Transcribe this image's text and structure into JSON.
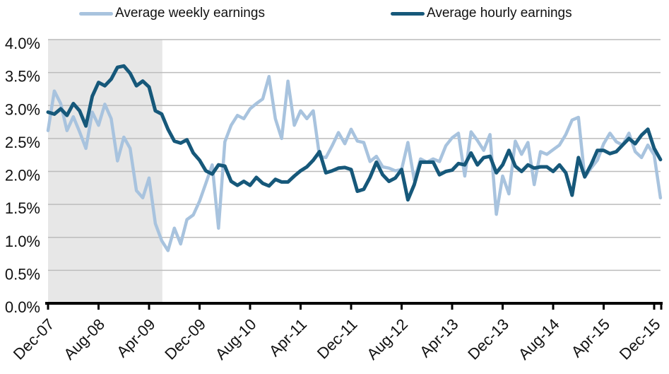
{
  "legend": {
    "weekly_label": "Average weekly earnings",
    "hourly_label": "Average hourly earnings"
  },
  "colors": {
    "weekly": "#a8c3de",
    "hourly": "#16587a",
    "band": "#e7e7e7",
    "gridline": "#bcbcbc",
    "axis": "#000000",
    "text": "#111111"
  },
  "chart_data": {
    "type": "line",
    "x_unit": "month",
    "x_tick_labels": [
      "Dec-07",
      "Aug-08",
      "Apr-09",
      "Dec-09",
      "Aug-10",
      "Apr-11",
      "Dec-11",
      "Aug-12",
      "Apr-13",
      "Dec-13",
      "Aug-14",
      "Apr-15",
      "Dec-15"
    ],
    "x_tick_indices": [
      0,
      8,
      16,
      24,
      32,
      40,
      48,
      56,
      64,
      72,
      80,
      88,
      96
    ],
    "y_tick_labels": [
      "0.0%",
      "0.5%",
      "1.0%",
      "1.5%",
      "2.0%",
      "2.5%",
      "3.0%",
      "3.5%",
      "4.0%"
    ],
    "y_tick_values": [
      0,
      0.5,
      1.0,
      1.5,
      2.0,
      2.5,
      3.0,
      3.5,
      4.0
    ],
    "ylim": [
      0,
      4.0
    ],
    "grid": "horizontal",
    "legend_position": "top",
    "shaded_region": {
      "start_index": 0,
      "end_index": 18.1
    },
    "series": [
      {
        "name": "Average weekly earnings",
        "color": "#a8c3de",
        "values": [
          2.62,
          3.22,
          3.03,
          2.62,
          2.83,
          2.6,
          2.35,
          2.9,
          2.7,
          3.02,
          2.8,
          2.16,
          2.52,
          2.35,
          1.71,
          1.6,
          1.9,
          1.21,
          0.95,
          0.8,
          1.14,
          0.9,
          1.27,
          1.34,
          1.55,
          1.82,
          2.1,
          1.14,
          2.45,
          2.7,
          2.85,
          2.8,
          2.95,
          3.03,
          3.1,
          3.44,
          2.8,
          2.5,
          3.37,
          2.7,
          2.92,
          2.8,
          2.92,
          2.23,
          2.21,
          2.39,
          2.59,
          2.42,
          2.64,
          2.46,
          2.44,
          2.15,
          2.23,
          2.07,
          2.05,
          2.01,
          2.03,
          2.44,
          1.87,
          2.19,
          2.14,
          2.19,
          2.15,
          2.39,
          2.51,
          2.58,
          1.93,
          2.6,
          2.47,
          2.32,
          2.56,
          1.35,
          1.93,
          1.66,
          2.46,
          2.26,
          2.44,
          1.8,
          2.3,
          2.26,
          2.33,
          2.4,
          2.56,
          2.78,
          2.82,
          1.91,
          2.05,
          2.17,
          2.42,
          2.58,
          2.45,
          2.4,
          2.58,
          2.3,
          2.21,
          2.4,
          2.25,
          1.6
        ]
      },
      {
        "name": "Average hourly earnings",
        "color": "#16587a",
        "values": [
          2.9,
          2.87,
          2.95,
          2.85,
          3.03,
          2.92,
          2.69,
          3.14,
          3.35,
          3.3,
          3.4,
          3.58,
          3.6,
          3.49,
          3.3,
          3.37,
          3.28,
          2.92,
          2.87,
          2.64,
          2.46,
          2.43,
          2.48,
          2.28,
          2.17,
          2.01,
          1.96,
          2.1,
          2.08,
          1.85,
          1.79,
          1.85,
          1.79,
          1.91,
          1.82,
          1.78,
          1.88,
          1.84,
          1.84,
          1.93,
          2.01,
          2.07,
          2.17,
          2.3,
          1.98,
          2.01,
          2.05,
          2.06,
          2.03,
          1.7,
          1.73,
          1.91,
          2.14,
          1.95,
          1.85,
          1.9,
          2.03,
          1.57,
          1.8,
          2.14,
          2.14,
          2.14,
          1.95,
          2.0,
          2.02,
          2.12,
          2.1,
          2.28,
          2.1,
          2.21,
          2.23,
          1.98,
          2.1,
          2.32,
          2.08,
          2.0,
          2.1,
          2.05,
          2.07,
          2.07,
          2.0,
          2.1,
          1.98,
          1.64,
          2.21,
          1.92,
          2.1,
          2.32,
          2.32,
          2.27,
          2.3,
          2.4,
          2.5,
          2.42,
          2.55,
          2.64,
          2.35,
          2.18
        ]
      }
    ]
  }
}
